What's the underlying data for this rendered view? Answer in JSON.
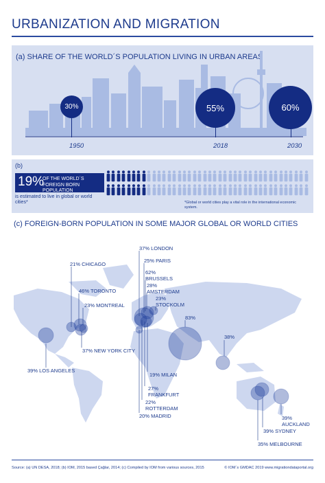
{
  "title": "URBANIZATION AND MIGRATION",
  "section_a": {
    "label": "(a) SHARE OF THE WORLD´S POPULATION LIVING IN URBAN AREAS",
    "points": [
      {
        "year": "1950",
        "value": "30%"
      },
      {
        "year": "2018",
        "value": "55%"
      },
      {
        "year": "2030",
        "value": "60%"
      }
    ]
  },
  "section_b": {
    "label": "(b)",
    "big_value": "19%",
    "box_text_1": "OF THE WORLD´S",
    "box_text_2": "FOREIGN BORN POPULATION",
    "subtext": "is estimated to live in global or world cities*",
    "footnote": "*Global or world cities play a vital role in the international economic system.",
    "share_fraction": 0.19
  },
  "section_c": {
    "label": "(c) FOREIGN-BORN POPULATION IN SOME MAJOR GLOBAL OR WORLD CITIES",
    "cities": [
      {
        "value": "37%",
        "name": "LONDON"
      },
      {
        "value": "25%",
        "name": "PARIS"
      },
      {
        "value": "62%",
        "name": "BRUSSELS"
      },
      {
        "value": "28%",
        "name": "AMSTERDAM"
      },
      {
        "value": "23%",
        "name": "STOCKOLM"
      },
      {
        "value": "83%",
        "name": ""
      },
      {
        "value": "38%",
        "name": ""
      },
      {
        "value": "21%",
        "name": "CHICAGO"
      },
      {
        "value": "46%",
        "name": "TORONTO"
      },
      {
        "value": "23%",
        "name": "MONTREAL"
      },
      {
        "value": "37%",
        "name": "NEW YORK CITY"
      },
      {
        "value": "39%",
        "name": "LOS ANGELES"
      },
      {
        "value": "19%",
        "name": "MILAN"
      },
      {
        "value": "27%",
        "name": "FRANKFURT"
      },
      {
        "value": "22%",
        "name": "ROTTERDAM"
      },
      {
        "value": "20%",
        "name": "MADRID"
      },
      {
        "value": "39%",
        "name": "AUCKLAND"
      },
      {
        "value": "39%",
        "name": "SYDNEY"
      },
      {
        "value": "35%",
        "name": "MELBOURNE"
      }
    ]
  },
  "source": "Source: (a) UN DESA, 2018; (b) IOM, 2015 based Çağlar, 2014; (c) Compiled by IOM from various sources, 2015",
  "copyright": "© IOM´s GMDAC 2019 www.migrationdataportal.org",
  "colors": {
    "dark_blue": "#142c83",
    "panel_bg": "#d7dff1",
    "building": "#a9bbe3",
    "map": "#cdd7ef"
  }
}
